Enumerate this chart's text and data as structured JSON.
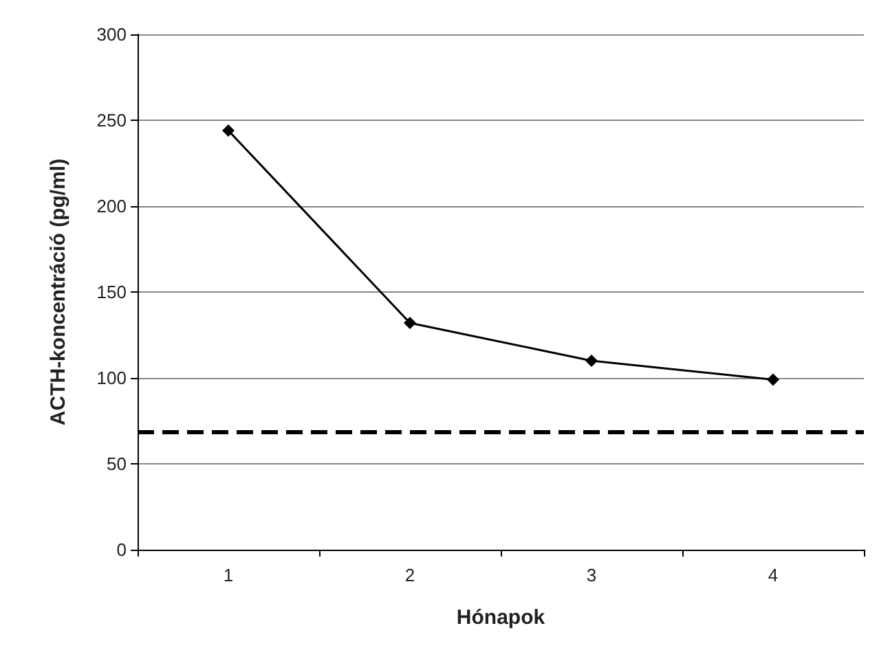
{
  "chart_data": {
    "type": "line",
    "xlabel": "Hónapok",
    "ylabel": "ACTH-koncentráció (pg/ml)",
    "categories": [
      "1",
      "2",
      "3",
      "4"
    ],
    "series": [
      {
        "color": "#000000",
        "values": [
          244,
          132,
          110,
          99
        ]
      }
    ],
    "ylim": [
      0,
      300
    ],
    "yticks": [
      0,
      50,
      100,
      150,
      200,
      250,
      300
    ],
    "grid": "y",
    "marker": "diamond",
    "line_style": "solid",
    "ref_lines": [
      {
        "axis": "y",
        "value": 69,
        "color": "#000000",
        "line_style": "dashed"
      }
    ]
  }
}
